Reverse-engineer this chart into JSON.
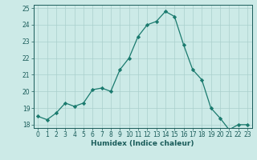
{
  "x": [
    0,
    1,
    2,
    3,
    4,
    5,
    6,
    7,
    8,
    9,
    10,
    11,
    12,
    13,
    14,
    15,
    16,
    17,
    18,
    19,
    20,
    21,
    22,
    23
  ],
  "y": [
    18.5,
    18.3,
    18.7,
    19.3,
    19.1,
    19.3,
    20.1,
    20.2,
    20.0,
    21.3,
    22.0,
    23.3,
    24.0,
    24.2,
    24.8,
    24.5,
    22.8,
    21.3,
    20.7,
    19.0,
    18.4,
    17.7,
    18.0,
    18.0
  ],
  "line_color": "#1a7a6e",
  "marker": "D",
  "marker_size": 2.2,
  "bg_color": "#cceae7",
  "grid_color": "#aacfcc",
  "xlabel": "Humidex (Indice chaleur)",
  "ylim": [
    17.8,
    25.2
  ],
  "xlim": [
    -0.5,
    23.5
  ],
  "yticks": [
    18,
    19,
    20,
    21,
    22,
    23,
    24,
    25
  ],
  "xticks": [
    0,
    1,
    2,
    3,
    4,
    5,
    6,
    7,
    8,
    9,
    10,
    11,
    12,
    13,
    14,
    15,
    16,
    17,
    18,
    19,
    20,
    21,
    22,
    23
  ],
  "tick_color": "#1a5c5a",
  "label_color": "#1a5c5a",
  "spine_color": "#1a5c5a"
}
